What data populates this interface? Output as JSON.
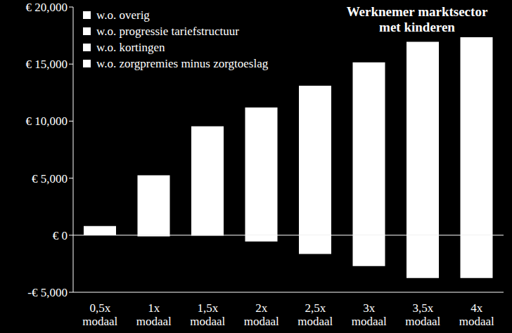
{
  "chart_data": {
    "type": "bar",
    "title": "Werknemer marktsector met kinderen",
    "stacked": true,
    "legend": "upper left",
    "categories": [
      "0,5x modaal",
      "1x modaal",
      "1,5x modaal",
      "2x modaal",
      "2,5x modaal",
      "3x modaal",
      "3,5x modaal",
      "4x modaal"
    ],
    "series": [
      {
        "name": "w.o. overig",
        "color": "#ffffff",
        "values": [
          0,
          0,
          0,
          0,
          0,
          0,
          0,
          0
        ]
      },
      {
        "name": "w.o. progressie tariefstructuur",
        "color": "#ffffff",
        "values": [
          800,
          5250,
          9550,
          11200,
          13100,
          15150,
          16950,
          17350
        ]
      },
      {
        "name": "w.o. kortingen",
        "color": "#ffffff",
        "values": [
          0,
          -100,
          -50,
          -550,
          -1650,
          -2700,
          -3750,
          -3750
        ]
      },
      {
        "name": "w.o. zorgpremies minus zorgtoeslag",
        "color": "#ffffff",
        "values": [
          0,
          0,
          0,
          0,
          0,
          0,
          0,
          0
        ]
      }
    ],
    "ylim": [
      -5000,
      20000
    ],
    "yticks": [
      {
        "value": -5000,
        "label": "-€ 5,000"
      },
      {
        "value": 0,
        "label": "€ 0"
      },
      {
        "value": 5000,
        "label": "€ 5,000"
      },
      {
        "value": 10000,
        "label": "€ 10,000"
      },
      {
        "value": 15000,
        "label": "€ 15,000"
      },
      {
        "value": 20000,
        "label": "€ 20,000"
      }
    ],
    "grid": false
  }
}
